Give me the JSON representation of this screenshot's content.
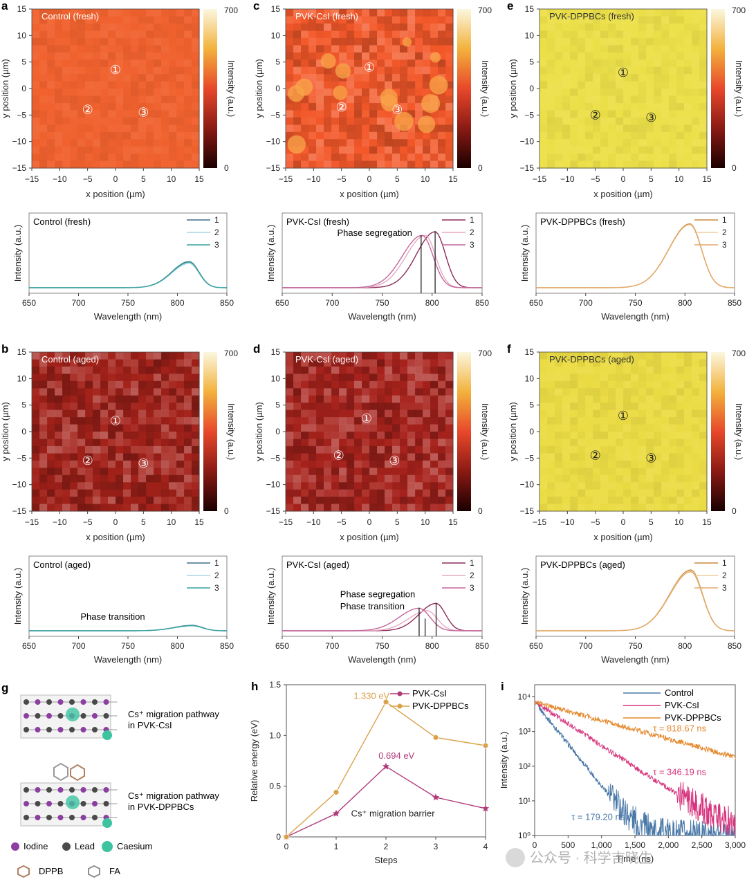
{
  "chart_data": [
    {
      "id": "a",
      "type": "heatmap",
      "letter": "a",
      "title": "Control (fresh)",
      "xlabel": "x position (µm)",
      "ylabel": "y position (µm)",
      "colorbar_label": "Intensity (a.u.)",
      "xlim": [
        -15,
        15
      ],
      "ylim": [
        -15,
        15
      ],
      "xticks": [
        "−15",
        "−10",
        "−5",
        "0",
        "5",
        "10",
        "15"
      ],
      "yticks": [
        "15",
        "10",
        "5",
        "0",
        "−5",
        "−10",
        "−15"
      ],
      "clim": [
        0,
        700
      ],
      "clim_labels": [
        "0",
        "700"
      ],
      "base_color": "#f0622f",
      "spots": [
        {
          "label": "①",
          "x": 0,
          "y": 3.5
        },
        {
          "label": "②",
          "x": -5,
          "y": -4
        },
        {
          "label": "③",
          "x": 5,
          "y": -4.5
        }
      ]
    },
    {
      "id": "c",
      "type": "heatmap",
      "letter": "c",
      "title": "PVK-CsI (fresh)",
      "xlabel": "x position (µm)",
      "ylabel": "y position (µm)",
      "colorbar_label": "Intensity (a.u.)",
      "xlim": [
        -15,
        15
      ],
      "ylim": [
        -15,
        15
      ],
      "xticks": [
        "−15",
        "−10",
        "−5",
        "0",
        "5",
        "10",
        "15"
      ],
      "yticks": [
        "15",
        "10",
        "5",
        "0",
        "−5",
        "−10",
        "−15"
      ],
      "clim": [
        0,
        700
      ],
      "clim_labels": [
        "0",
        "700"
      ],
      "base_color": "#f3582a",
      "spots": [
        {
          "label": "①",
          "x": 0,
          "y": 4
        },
        {
          "label": "②",
          "x": -5,
          "y": -3.5
        },
        {
          "label": "③",
          "x": 5,
          "y": -4
        }
      ]
    },
    {
      "id": "e",
      "type": "heatmap",
      "letter": "e",
      "title": "PVK-DPPBCs (fresh)",
      "xlabel": "x position (µm)",
      "ylabel": "y position (µm)",
      "colorbar_label": "Intensity (a.u.)",
      "xlim": [
        -15,
        15
      ],
      "ylim": [
        -15,
        15
      ],
      "xticks": [
        "−15",
        "−10",
        "−5",
        "0",
        "5",
        "10",
        "15"
      ],
      "yticks": [
        "15",
        "10",
        "5",
        "0",
        "−5",
        "−10",
        "−15"
      ],
      "clim": [
        0,
        700
      ],
      "clim_labels": [
        "0",
        "700"
      ],
      "base_color": "#ece04a",
      "spots": [
        {
          "label": "①",
          "x": 0,
          "y": 3
        },
        {
          "label": "②",
          "x": -5,
          "y": -5
        },
        {
          "label": "③",
          "x": 5,
          "y": -5.5
        }
      ]
    },
    {
      "id": "b",
      "type": "heatmap",
      "letter": "b",
      "title": "Control (aged)",
      "xlabel": "x position (µm)",
      "ylabel": "y position (µm)",
      "colorbar_label": "Intensity (a.u.)",
      "xlim": [
        -15,
        15
      ],
      "ylim": [
        -15,
        15
      ],
      "xticks": [
        "−15",
        "−10",
        "−5",
        "0",
        "5",
        "10",
        "15"
      ],
      "yticks": [
        "15",
        "10",
        "5",
        "0",
        "−5",
        "−10",
        "−15"
      ],
      "clim": [
        0,
        700
      ],
      "clim_labels": [
        "0",
        "700"
      ],
      "base_color": "#a3221a",
      "spots": [
        {
          "label": "①",
          "x": 0,
          "y": 2
        },
        {
          "label": "②",
          "x": -5,
          "y": -5.5
        },
        {
          "label": "③",
          "x": 5,
          "y": -6
        }
      ]
    },
    {
      "id": "d",
      "type": "heatmap",
      "letter": "d",
      "title": "PVK-CsI (aged)",
      "xlabel": "x position (µm)",
      "ylabel": "y position (µm)",
      "colorbar_label": "Intensity (a.u.)",
      "xlim": [
        -15,
        15
      ],
      "ylim": [
        -15,
        15
      ],
      "xticks": [
        "−15",
        "−10",
        "−5",
        "0",
        "5",
        "10",
        "15"
      ],
      "yticks": [
        "15",
        "10",
        "5",
        "0",
        "−5",
        "−10",
        "−15"
      ],
      "clim": [
        0,
        700
      ],
      "clim_labels": [
        "0",
        "700"
      ],
      "base_color": "#a8231c",
      "spots": [
        {
          "label": "①",
          "x": -0.5,
          "y": 2.5
        },
        {
          "label": "②",
          "x": -5.5,
          "y": -4.5
        },
        {
          "label": "③",
          "x": 4.5,
          "y": -5.5
        }
      ]
    },
    {
      "id": "f",
      "type": "heatmap",
      "letter": "f",
      "title": "PVK-DPPBCs (aged)",
      "xlabel": "x position (µm)",
      "ylabel": "y position (µm)",
      "colorbar_label": "Intensity (a.u.)",
      "xlim": [
        -15,
        15
      ],
      "ylim": [
        -15,
        15
      ],
      "xticks": [
        "−15",
        "−10",
        "−5",
        "0",
        "5",
        "10",
        "15"
      ],
      "yticks": [
        "15",
        "10",
        "5",
        "0",
        "−5",
        "−10",
        "−15"
      ],
      "clim": [
        0,
        700
      ],
      "clim_labels": [
        "0",
        "700"
      ],
      "base_color": "#ebdc45",
      "spots": [
        {
          "label": "①",
          "x": 0,
          "y": 3
        },
        {
          "label": "②",
          "x": -5,
          "y": -4.5
        },
        {
          "label": "③",
          "x": 5,
          "y": -5
        }
      ]
    },
    {
      "id": "spec_a",
      "type": "line",
      "title": "Control (fresh)",
      "xlabel": "Wavelength (nm)",
      "ylabel": "Intensity (a.u.)",
      "xlim": [
        650,
        850
      ],
      "ylim": [
        0,
        1
      ],
      "xticks": [
        "650",
        "700",
        "750",
        "800",
        "850"
      ],
      "series": [
        {
          "name": "1",
          "color": "#3f6f8a",
          "peak": 812,
          "amp": 0.43,
          "width": 25
        },
        {
          "name": "2",
          "color": "#a9d6e3",
          "peak": 812,
          "amp": 0.4,
          "width": 25
        },
        {
          "name": "3",
          "color": "#35a29e",
          "peak": 812,
          "amp": 0.42,
          "width": 25
        }
      ],
      "annotations": [],
      "markers": []
    },
    {
      "id": "spec_c",
      "type": "line",
      "title": "PVK-CsI (fresh)",
      "xlabel": "Wavelength (nm)",
      "ylabel": "Intensity (a.u.)",
      "xlim": [
        650,
        850
      ],
      "ylim": [
        0,
        1
      ],
      "xticks": [
        "650",
        "700",
        "750",
        "800",
        "850"
      ],
      "series": [
        {
          "name": "1",
          "color": "#8c2a5a",
          "peak": 803,
          "amp": 0.92,
          "width": 26
        },
        {
          "name": "2",
          "color": "#e6a9c3",
          "peak": 793,
          "amp": 0.86,
          "width": 27
        },
        {
          "name": "3",
          "color": "#c3679a",
          "peak": 790,
          "amp": 0.86,
          "width": 28
        }
      ],
      "annotations": [
        {
          "text": "Phase segregation",
          "x": 705,
          "y": 0.85
        }
      ],
      "markers": [
        {
          "x": 789,
          "top": 0.86
        },
        {
          "x": 803,
          "top": 0.93
        }
      ]
    },
    {
      "id": "spec_e",
      "type": "line",
      "title": "PVK-DPPBCs (fresh)",
      "xlabel": "Wavelength (nm)",
      "ylabel": "Intensity (a.u.)",
      "xlim": [
        650,
        850
      ],
      "ylim": [
        0,
        1
      ],
      "xticks": [
        "650",
        "700",
        "750",
        "800",
        "850"
      ],
      "series": [
        {
          "name": "1",
          "color": "#c98a3a",
          "peak": 805,
          "amp": 1.05,
          "width": 30
        },
        {
          "name": "2",
          "color": "#f1cfa0",
          "peak": 805,
          "amp": 1.04,
          "width": 30
        },
        {
          "name": "3",
          "color": "#e3a96a",
          "peak": 805,
          "amp": 1.04,
          "width": 30
        }
      ],
      "annotations": [],
      "markers": []
    },
    {
      "id": "spec_b",
      "type": "line",
      "title": "Control (aged)",
      "xlabel": "Wavelength (nm)",
      "ylabel": "Intensity (a.u.)",
      "xlim": [
        650,
        850
      ],
      "ylim": [
        0,
        1
      ],
      "xticks": [
        "650",
        "700",
        "750",
        "800",
        "850"
      ],
      "series": [
        {
          "name": "1",
          "color": "#3f6f8a",
          "peak": 815,
          "amp": 0.09,
          "width": 26
        },
        {
          "name": "2",
          "color": "#a9d6e3",
          "peak": 815,
          "amp": 0.08,
          "width": 26
        },
        {
          "name": "3",
          "color": "#35a29e",
          "peak": 815,
          "amp": 0.085,
          "width": 26
        }
      ],
      "annotations": [
        {
          "text": "Phase transition",
          "x": 702,
          "y": 0.18
        }
      ],
      "markers": []
    },
    {
      "id": "spec_d",
      "type": "line",
      "title": "PVK-CsI (aged)",
      "xlabel": "Wavelength (nm)",
      "ylabel": "Intensity (a.u.)",
      "xlim": [
        650,
        850
      ],
      "ylim": [
        0,
        1
      ],
      "xticks": [
        "650",
        "700",
        "750",
        "800",
        "850"
      ],
      "series": [
        {
          "name": "1",
          "color": "#8c2a5a",
          "peak": 804,
          "amp": 0.45,
          "width": 24
        },
        {
          "name": "2",
          "color": "#e6a9c3",
          "peak": 795,
          "amp": 0.33,
          "width": 26
        },
        {
          "name": "3",
          "color": "#c3679a",
          "peak": 787,
          "amp": 0.37,
          "width": 28
        }
      ],
      "annotations": [
        {
          "text": "Phase segregation",
          "x": 708,
          "y": 0.55
        },
        {
          "text": "Phase transition",
          "x": 708,
          "y": 0.35
        }
      ],
      "markers": [
        {
          "x": 787,
          "top": 0.38
        },
        {
          "x": 793,
          "top": 0.2
        },
        {
          "x": 804,
          "top": 0.46
        }
      ]
    },
    {
      "id": "spec_f",
      "type": "line",
      "title": "PVK-DPPBCs (aged)",
      "xlabel": "Wavelength (nm)",
      "ylabel": "Intensity (a.u.)",
      "xlim": [
        650,
        850
      ],
      "ylim": [
        0,
        1
      ],
      "xticks": [
        "650",
        "700",
        "750",
        "800",
        "850"
      ],
      "series": [
        {
          "name": "1",
          "color": "#c98a3a",
          "peak": 806,
          "amp": 1.0,
          "width": 30
        },
        {
          "name": "2",
          "color": "#f1cfa0",
          "peak": 806,
          "amp": 0.98,
          "width": 30
        },
        {
          "name": "3",
          "color": "#e3a96a",
          "peak": 806,
          "amp": 0.97,
          "width": 30
        }
      ],
      "annotations": [],
      "markers": []
    },
    {
      "id": "h",
      "type": "line",
      "letter": "h",
      "xlabel": "Steps",
      "ylabel": "Relative energy (eV)",
      "x": [
        0,
        1,
        2,
        3,
        4
      ],
      "xlim": [
        0,
        4
      ],
      "ylim": [
        0,
        1.5
      ],
      "xticks": [
        "0",
        "1",
        "2",
        "3",
        "4"
      ],
      "yticks": [
        "0",
        "0.5",
        "1.0",
        "1.5"
      ],
      "legend": "top-right",
      "series": [
        {
          "name": "PVK-CsI",
          "color": "#b03a7a",
          "marker": "star",
          "values": [
            0,
            0.23,
            0.694,
            0.39,
            0.28
          ]
        },
        {
          "name": "PVK-DPPBCs",
          "color": "#d9a24a",
          "marker": "circle",
          "values": [
            0,
            0.44,
            1.33,
            0.98,
            0.9
          ]
        }
      ],
      "annotations": [
        {
          "text": "1.330 eV",
          "x": 1.35,
          "y": 1.36,
          "color": "#d9a24a"
        },
        {
          "text": "0.694 eV",
          "x": 1.85,
          "y": 0.77,
          "color": "#b03a7a"
        },
        {
          "text": "Cs⁺ migration barrier",
          "x": 1.3,
          "y": 0.2,
          "color": "#222"
        }
      ]
    },
    {
      "id": "i",
      "type": "line",
      "letter": "i",
      "xlabel": "Time (ns)",
      "ylabel": "Intensity (a.u.)",
      "xlim": [
        0,
        3000
      ],
      "ylim_log": [
        0,
        4
      ],
      "xticks": [
        "0",
        "500",
        "1,000",
        "1,500",
        "2,000",
        "2,500",
        "3,000"
      ],
      "yticks": [
        "10⁰",
        "10¹",
        "10²",
        "10³",
        "10⁴"
      ],
      "legend": "top-right",
      "series": [
        {
          "name": "Control",
          "color": "#4a79a8",
          "tau": 179.2,
          "floor": 1.0
        },
        {
          "name": "PVK-CsI",
          "color": "#d7357e",
          "tau": 346.19,
          "floor": 1.0
        },
        {
          "name": "PVK-DPPBCs",
          "color": "#e58a2e",
          "tau": 818.67,
          "floor": 1.0
        }
      ],
      "annotations": [
        {
          "text": "τ = 818.67 ns",
          "x": 1770,
          "y": 3.0,
          "color": "#e58a2e"
        },
        {
          "text": "τ = 346.19 ns",
          "x": 1770,
          "y": 1.75,
          "color": "#d7357e"
        },
        {
          "text": "τ = 179.20 ns",
          "x": 550,
          "y": 0.45,
          "color": "#4a79a8"
        }
      ]
    }
  ],
  "panel_g": {
    "letter": "g",
    "pathway_csi": "Cs⁺ migration pathway\nin PVK-CsI",
    "pathway_dppbcs": "Cs⁺ migration pathway\nin PVK-DPPBCs",
    "legend": [
      {
        "name": "Iodine",
        "color": "#8c3fa0"
      },
      {
        "name": "Lead",
        "color": "#4a4a4a"
      },
      {
        "name": "Caesium",
        "color": "#3cc3a0"
      },
      {
        "name": "DPPB",
        "color": "#b08060"
      },
      {
        "name": "FA",
        "color": "#909090"
      }
    ]
  },
  "watermark": "公众号 · 科学吉晓生"
}
